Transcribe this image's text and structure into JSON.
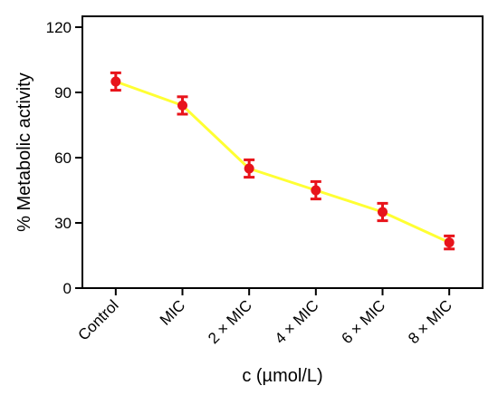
{
  "chart_data": {
    "type": "line",
    "xlabel": "c (µmol/L)",
    "ylabel": "% Metabolic activity",
    "categories": [
      "Control",
      "MIC",
      "2 × MIC",
      "4 × MIC",
      "6 × MIC",
      "8 × MIC"
    ],
    "values": [
      95,
      84,
      55,
      45,
      35,
      21
    ],
    "errors": [
      4,
      4,
      4,
      4,
      4,
      3
    ],
    "ylim": [
      0,
      125
    ],
    "yticks": [
      0,
      30,
      60,
      90,
      120
    ],
    "ytick_labels": [
      "0",
      "30",
      "60",
      "90",
      "120"
    ],
    "grid": false,
    "line_color": "#ffff33",
    "marker_color": "#e8141b",
    "errorbar_color": "#e8141b"
  }
}
